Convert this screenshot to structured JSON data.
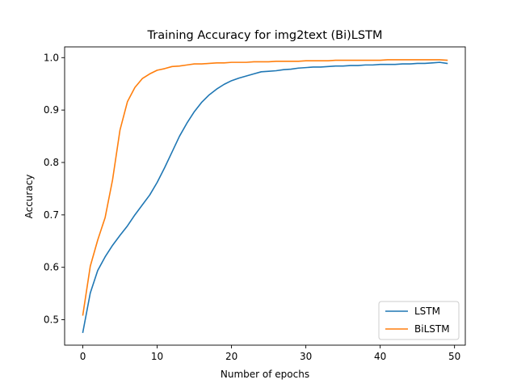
{
  "chart_data": {
    "type": "line",
    "title": "Training Accuracy for img2text (Bi)LSTM",
    "xlabel": "Number of epochs",
    "ylabel": "Accuracy",
    "xlim": [
      -2.45,
      51.45
    ],
    "ylim": [
      0.4515,
      1.0205
    ],
    "xticks": [
      0,
      10,
      20,
      30,
      40,
      50
    ],
    "yticks": [
      0.5,
      0.6,
      0.7,
      0.8,
      0.9,
      1.0
    ],
    "ytick_labels": [
      "0.5",
      "0.6",
      "0.7",
      "0.8",
      "0.9",
      "1.0"
    ],
    "grid": false,
    "legend_position": "lower-right",
    "x": [
      0,
      1,
      2,
      3,
      4,
      5,
      6,
      7,
      8,
      9,
      10,
      11,
      12,
      13,
      14,
      15,
      16,
      17,
      18,
      19,
      20,
      21,
      22,
      23,
      24,
      25,
      26,
      27,
      28,
      29,
      30,
      31,
      32,
      33,
      34,
      35,
      36,
      37,
      38,
      39,
      40,
      41,
      42,
      43,
      44,
      45,
      46,
      47,
      48,
      49
    ],
    "series": [
      {
        "name": "LSTM",
        "color": "#1f77b4",
        "values": [
          0.476,
          0.551,
          0.594,
          0.62,
          0.642,
          0.661,
          0.679,
          0.7,
          0.719,
          0.738,
          0.762,
          0.79,
          0.82,
          0.85,
          0.875,
          0.897,
          0.915,
          0.929,
          0.94,
          0.949,
          0.956,
          0.961,
          0.965,
          0.969,
          0.973,
          0.974,
          0.975,
          0.977,
          0.978,
          0.98,
          0.981,
          0.982,
          0.982,
          0.983,
          0.984,
          0.984,
          0.985,
          0.985,
          0.986,
          0.986,
          0.987,
          0.987,
          0.987,
          0.988,
          0.988,
          0.989,
          0.989,
          0.99,
          0.991,
          0.989
        ]
      },
      {
        "name": "BiLSTM",
        "color": "#ff7f0e",
        "values": [
          0.509,
          0.602,
          0.652,
          0.695,
          0.767,
          0.862,
          0.916,
          0.943,
          0.96,
          0.969,
          0.976,
          0.979,
          0.983,
          0.984,
          0.986,
          0.988,
          0.988,
          0.989,
          0.99,
          0.99,
          0.991,
          0.991,
          0.991,
          0.992,
          0.992,
          0.992,
          0.993,
          0.993,
          0.993,
          0.993,
          0.994,
          0.994,
          0.994,
          0.994,
          0.995,
          0.995,
          0.995,
          0.995,
          0.995,
          0.995,
          0.995,
          0.996,
          0.996,
          0.996,
          0.996,
          0.996,
          0.996,
          0.996,
          0.996,
          0.995
        ]
      }
    ]
  }
}
